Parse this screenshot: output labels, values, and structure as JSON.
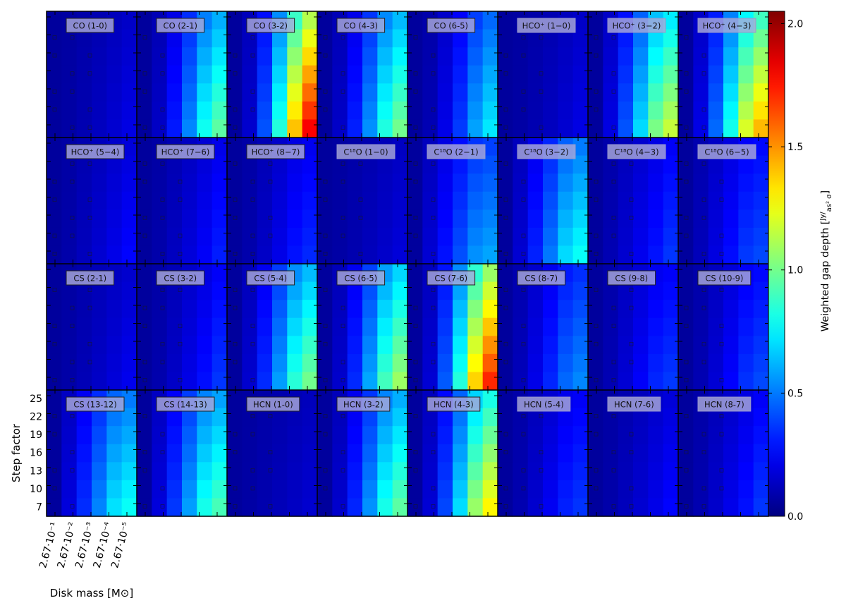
{
  "chart_data": {
    "type": "heatmap",
    "colormap": "jet",
    "colorbar": {
      "label": "Weighted gap depth",
      "unit_num": "Jy",
      "unit_den": "as² σ",
      "range": [
        0.0,
        2.05
      ],
      "ticks": [
        "0.0",
        "0.5",
        "1.0",
        "1.5",
        "2.0"
      ]
    },
    "xlabel": "Disk mass [M⊙]",
    "ylabel": "Step factor",
    "x_ticks": [
      "2.67·10⁻¹",
      "2.67·10⁻²",
      "2.67·10⁻³",
      "2.67·10⁻⁴",
      "2.67·10⁻⁵"
    ],
    "y_ticks": [
      "25",
      "22",
      "19",
      "16",
      "13",
      "10",
      "7"
    ],
    "panels": [
      {
        "label": "CO (1-0)",
        "dark": true,
        "hi": 0.14,
        "mid": 0.1,
        "pow": 1.4,
        "frame": true
      },
      {
        "label": "CO (2-1)",
        "dark": false,
        "hi": 1.05,
        "mid": 0.7,
        "pow": 1.6,
        "frame": true
      },
      {
        "label": "CO (3-2)",
        "dark": false,
        "hi": 2.05,
        "mid": 1.5,
        "pow": 1.9,
        "frame": true
      },
      {
        "label": "CO (4-3)",
        "dark": false,
        "hi": 1.1,
        "mid": 0.75,
        "pow": 1.6,
        "frame": true
      },
      {
        "label": "CO (6-5)",
        "dark": false,
        "hi": 0.78,
        "mid": 0.62,
        "pow": 1.8,
        "frame": true
      },
      {
        "label": "HCO⁺ (1−0)",
        "dark": true,
        "hi": 0.14,
        "mid": 0.1,
        "pow": 1.4,
        "frame": false
      },
      {
        "label": "HCO⁺ (3−2)",
        "dark": false,
        "hi": 1.3,
        "mid": 0.95,
        "pow": 1.4,
        "frame": false
      },
      {
        "label": "HCO⁺ (4−3)",
        "dark": false,
        "hi": 1.6,
        "mid": 1.05,
        "pow": 1.5,
        "frame": false
      },
      {
        "label": "HCO⁺ (5−4)",
        "dark": true,
        "hi": 0.2,
        "mid": 0.17,
        "pow": 1.3,
        "frame": true
      },
      {
        "label": "HCO⁺ (7−6)",
        "dark": true,
        "hi": 0.25,
        "mid": 0.2,
        "pow": 1.4,
        "frame": true
      },
      {
        "label": "HCO⁺ (8−7)",
        "dark": true,
        "hi": 0.32,
        "mid": 0.25,
        "pow": 1.5,
        "frame": true
      },
      {
        "label": "C¹⁸O (1−0)",
        "dark": true,
        "hi": 0.12,
        "mid": 0.1,
        "pow": 1.3,
        "frame": false
      },
      {
        "label": "C¹⁸O (2−1)",
        "dark": false,
        "hi": 0.62,
        "mid": 0.5,
        "pow": 1.1,
        "frame": false
      },
      {
        "label": "C¹⁸O (3−2)",
        "dark": false,
        "hi": 0.85,
        "mid": 0.55,
        "pow": 1.3,
        "frame": false
      },
      {
        "label": "C¹⁸O (4−3)",
        "dark": true,
        "hi": 0.3,
        "mid": 0.22,
        "pow": 1.2,
        "frame": false
      },
      {
        "label": "C¹⁸O (6−5)",
        "dark": true,
        "hi": 0.4,
        "mid": 0.3,
        "pow": 1.2,
        "frame": false
      },
      {
        "label": "CS (2-1)",
        "dark": true,
        "hi": 0.16,
        "mid": 0.12,
        "pow": 1.3,
        "frame": true
      },
      {
        "label": "CS (3-2)",
        "dark": true,
        "hi": 0.3,
        "mid": 0.22,
        "pow": 1.4,
        "frame": true
      },
      {
        "label": "CS (5-4)",
        "dark": false,
        "hi": 1.1,
        "mid": 0.8,
        "pow": 1.5,
        "frame": true
      },
      {
        "label": "CS (6-5)",
        "dark": false,
        "hi": 1.2,
        "mid": 0.85,
        "pow": 1.6,
        "frame": true
      },
      {
        "label": "CS (7-6)",
        "dark": false,
        "hi": 1.95,
        "mid": 1.25,
        "pow": 1.8,
        "frame": true
      },
      {
        "label": "CS (8-7)",
        "dark": false,
        "hi": 0.55,
        "mid": 0.4,
        "pow": 1.4,
        "frame": true
      },
      {
        "label": "CS (9-8)",
        "dark": true,
        "hi": 0.36,
        "mid": 0.3,
        "pow": 1.3,
        "frame": true
      },
      {
        "label": "CS (10-9)",
        "dark": true,
        "hi": 0.4,
        "mid": 0.32,
        "pow": 1.4,
        "frame": true
      },
      {
        "label": "CS (13-12)",
        "dark": false,
        "hi": 0.85,
        "mid": 0.45,
        "pow": 1.2,
        "frame": true
      },
      {
        "label": "CS (14-13)",
        "dark": false,
        "hi": 1.0,
        "mid": 0.6,
        "pow": 1.3,
        "frame": true
      },
      {
        "label": "HCN (1-0)",
        "dark": true,
        "hi": 0.1,
        "mid": 0.08,
        "pow": 1.2,
        "frame": true
      },
      {
        "label": "HCN (3-2)",
        "dark": false,
        "hi": 1.05,
        "mid": 0.75,
        "pow": 1.5,
        "frame": true
      },
      {
        "label": "HCN (4-3)",
        "dark": false,
        "hi": 1.45,
        "mid": 0.95,
        "pow": 1.6,
        "frame": true
      },
      {
        "label": "HCN (5-4)",
        "dark": true,
        "hi": 0.35,
        "mid": 0.25,
        "pow": 1.4,
        "frame": false
      },
      {
        "label": "HCN (7-6)",
        "dark": true,
        "hi": 0.2,
        "mid": 0.15,
        "pow": 1.3,
        "frame": false
      },
      {
        "label": "HCN (8-7)",
        "dark": true,
        "hi": 0.3,
        "mid": 0.2,
        "pow": 1.3,
        "frame": false
      }
    ]
  }
}
